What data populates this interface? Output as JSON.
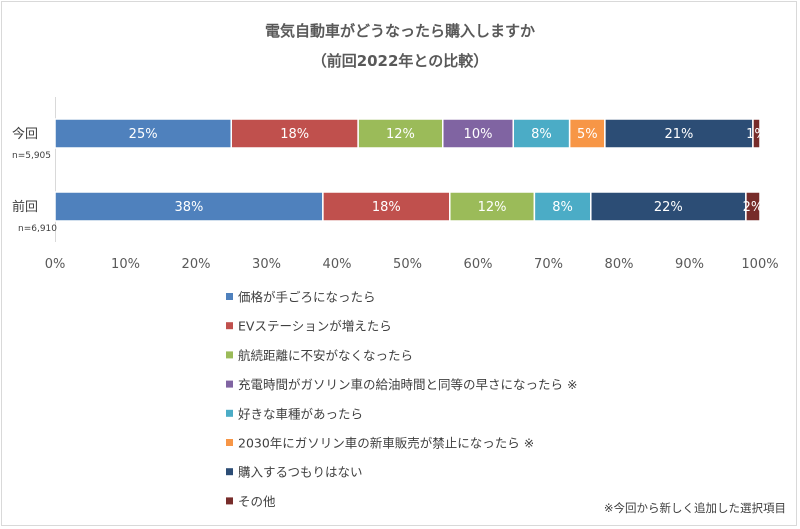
{
  "chart_data": {
    "type": "bar",
    "orientation": "horizontal",
    "stacked": true,
    "title": "電気自動車がどうなったら購入しますか",
    "subtitle": "（前回2022年との比較）",
    "xlim": [
      0,
      100
    ],
    "xticks": [
      "0%",
      "10%",
      "20%",
      "30%",
      "40%",
      "50%",
      "60%",
      "70%",
      "80%",
      "90%",
      "100%"
    ],
    "categories": [
      {
        "label": "今回",
        "n": "n=5,905"
      },
      {
        "label": "前回",
        "n": "n=6,910"
      }
    ],
    "series": [
      {
        "name": "価格が手ごろになったら",
        "color": "#4f81bd",
        "values": [
          25,
          38
        ]
      },
      {
        "name": "EVステーションが増えたら",
        "color": "#c0504d",
        "values": [
          18,
          18
        ]
      },
      {
        "name": "航続距離に不安がなくなったら",
        "color": "#9bbb59",
        "values": [
          12,
          12
        ]
      },
      {
        "name": "充電時間がガソリン車の給油時間と同等の早さになったら ※",
        "color": "#8064a2",
        "values": [
          10,
          null
        ]
      },
      {
        "name": "好きな車種があったら",
        "color": "#4bacc6",
        "values": [
          8,
          8
        ]
      },
      {
        "name": "2030年にガソリン車の新車販売が禁止になったら ※",
        "color": "#f79646",
        "values": [
          5,
          null
        ]
      },
      {
        "name": "購入するつもりはない",
        "color": "#2c4d75",
        "values": [
          21,
          22
        ]
      },
      {
        "name": "その他",
        "color": "#772c2a",
        "values": [
          1,
          2
        ]
      }
    ],
    "legend_position": "bottom",
    "footnote": "※今回から新しく追加した選択項目"
  }
}
